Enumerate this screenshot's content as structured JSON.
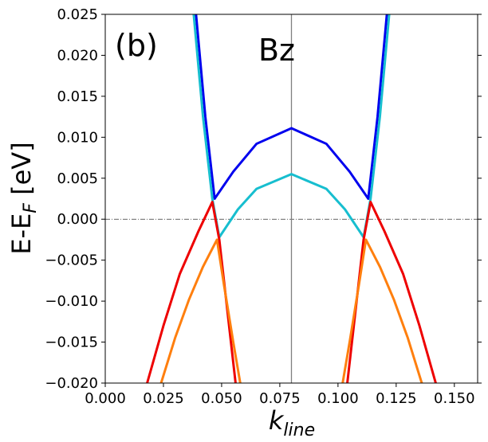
{
  "chart_data": {
    "type": "line",
    "panel_label": "(b)",
    "title": "Bz",
    "xlabel_main": "k",
    "xlabel_sub": "line",
    "ylabel_main": "E-E",
    "ylabel_sub": "F",
    "ylabel_unit": " [eV]",
    "xlim": [
      0.0,
      0.16
    ],
    "ylim": [
      -0.02,
      0.025
    ],
    "xticks": [
      0.0,
      0.025,
      0.05,
      0.075,
      0.1,
      0.125,
      0.15
    ],
    "xtick_labels": [
      "0.000",
      "0.025",
      "0.050",
      "0.075",
      "0.100",
      "0.125",
      "0.150"
    ],
    "yticks": [
      -0.02,
      -0.015,
      -0.01,
      -0.005,
      0.0,
      0.005,
      0.01,
      0.015,
      0.02,
      0.025
    ],
    "ytick_labels": [
      "−0.020",
      "−0.015",
      "−0.010",
      "−0.005",
      "0.000",
      "0.005",
      "0.010",
      "0.015",
      "0.020",
      "0.025"
    ],
    "reference_lines": {
      "horizontal_dashdot_y": 0.0,
      "vertical_x": 0.08
    },
    "series": [
      {
        "color": "#0000ee",
        "points": [
          [
            0.039,
            0.025
          ],
          [
            0.043,
            0.0125
          ],
          [
            0.047,
            0.0025
          ],
          [
            0.055,
            0.0058
          ],
          [
            0.065,
            0.0092
          ],
          [
            0.08,
            0.0111
          ],
          [
            0.095,
            0.0092
          ],
          [
            0.105,
            0.0058
          ],
          [
            0.113,
            0.0025
          ],
          [
            0.117,
            0.0125
          ],
          [
            0.121,
            0.025
          ]
        ]
      },
      {
        "color": "#17becf",
        "points": [
          [
            0.038,
            0.025
          ],
          [
            0.042,
            0.0125
          ],
          [
            0.046,
            0.0025
          ],
          [
            0.049,
            -0.0022
          ],
          [
            0.057,
            0.0012
          ],
          [
            0.065,
            0.0037
          ],
          [
            0.08,
            0.0055
          ],
          [
            0.095,
            0.0037
          ],
          [
            0.103,
            0.0012
          ],
          [
            0.111,
            -0.0022
          ],
          [
            0.114,
            0.0025
          ],
          [
            0.118,
            0.0125
          ],
          [
            0.122,
            0.025
          ]
        ]
      },
      {
        "color": "#ee0000",
        "points": [
          [
            0.018,
            -0.02
          ],
          [
            0.025,
            -0.013
          ],
          [
            0.032,
            -0.0067
          ],
          [
            0.04,
            -0.0015
          ],
          [
            0.046,
            0.0021
          ],
          [
            0.049,
            -0.0025
          ],
          [
            0.052,
            -0.01
          ],
          [
            0.056,
            -0.02
          ]
        ]
      },
      {
        "color": "#ee0000",
        "points": [
          [
            0.104,
            -0.02
          ],
          [
            0.108,
            -0.01
          ],
          [
            0.111,
            -0.0025
          ],
          [
            0.114,
            0.0021
          ],
          [
            0.12,
            -0.0015
          ],
          [
            0.128,
            -0.0067
          ],
          [
            0.135,
            -0.013
          ],
          [
            0.142,
            -0.02
          ]
        ]
      },
      {
        "color": "#ff7f0e",
        "points": [
          [
            0.024,
            -0.02
          ],
          [
            0.03,
            -0.0145
          ],
          [
            0.036,
            -0.0098
          ],
          [
            0.042,
            -0.0058
          ],
          [
            0.048,
            -0.0025
          ],
          [
            0.051,
            -0.008
          ],
          [
            0.055,
            -0.015
          ],
          [
            0.058,
            -0.02
          ]
        ]
      },
      {
        "color": "#ff7f0e",
        "points": [
          [
            0.102,
            -0.02
          ],
          [
            0.105,
            -0.015
          ],
          [
            0.109,
            -0.008
          ],
          [
            0.112,
            -0.0025
          ],
          [
            0.118,
            -0.0058
          ],
          [
            0.124,
            -0.0098
          ],
          [
            0.13,
            -0.0145
          ],
          [
            0.136,
            -0.02
          ]
        ]
      }
    ]
  }
}
